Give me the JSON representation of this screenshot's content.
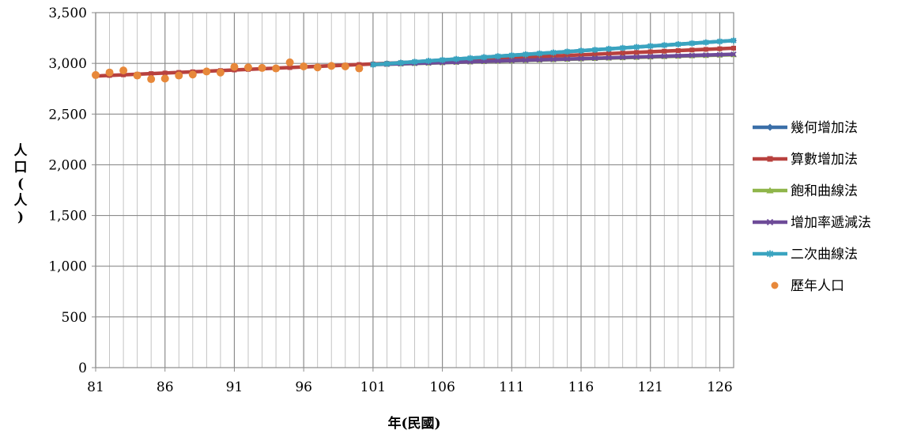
{
  "chart_data": {
    "type": "line",
    "xlabel": "年(民國)",
    "ylabel": "人口(人)",
    "xlim": [
      81,
      127
    ],
    "ylim": [
      0,
      3500
    ],
    "x_ticks": [
      "81",
      "86",
      "91",
      "96",
      "101",
      "106",
      "111",
      "116",
      "121",
      "126"
    ],
    "y_ticks": [
      "0",
      "500",
      "1,000",
      "1,500",
      "2,000",
      "2,500",
      "3,000",
      "3,500"
    ],
    "grid": true,
    "legend_position": "right",
    "series": [
      {
        "name": "幾何增加法",
        "type": "line",
        "color": "#3a6fa8",
        "marker": "diamond",
        "x": [
          101,
          127
        ],
        "y": [
          2988,
          3225
        ]
      },
      {
        "name": "算數增加法",
        "type": "line",
        "color": "#b8413e",
        "marker": "square",
        "x": [
          81,
          127
        ],
        "y": [
          2875,
          3150
        ]
      },
      {
        "name": "飽和曲線法",
        "type": "line",
        "color": "#8fb54a",
        "marker": "triangle",
        "x": [
          101,
          127
        ],
        "y": [
          2988,
          3085
        ]
      },
      {
        "name": "增加率遞減法",
        "type": "line",
        "color": "#6e4b98",
        "marker": "x",
        "x": [
          101,
          127
        ],
        "y": [
          2988,
          3090
        ]
      },
      {
        "name": "二次曲線法",
        "type": "line",
        "color": "#3aa4c0",
        "marker": "star",
        "x": [
          101,
          127
        ],
        "y": [
          2988,
          3225
        ]
      },
      {
        "name": "歷年人口",
        "type": "scatter",
        "color": "#e7883a",
        "marker": "circle",
        "x": [
          81,
          82,
          83,
          84,
          85,
          86,
          87,
          88,
          89,
          90,
          91,
          92,
          93,
          94,
          95,
          96,
          97,
          98,
          99,
          100
        ],
        "y": [
          2885,
          2910,
          2930,
          2880,
          2845,
          2850,
          2880,
          2890,
          2920,
          2910,
          2965,
          2960,
          2955,
          2950,
          3010,
          2970,
          2960,
          2975,
          2970,
          2950
        ]
      }
    ]
  }
}
